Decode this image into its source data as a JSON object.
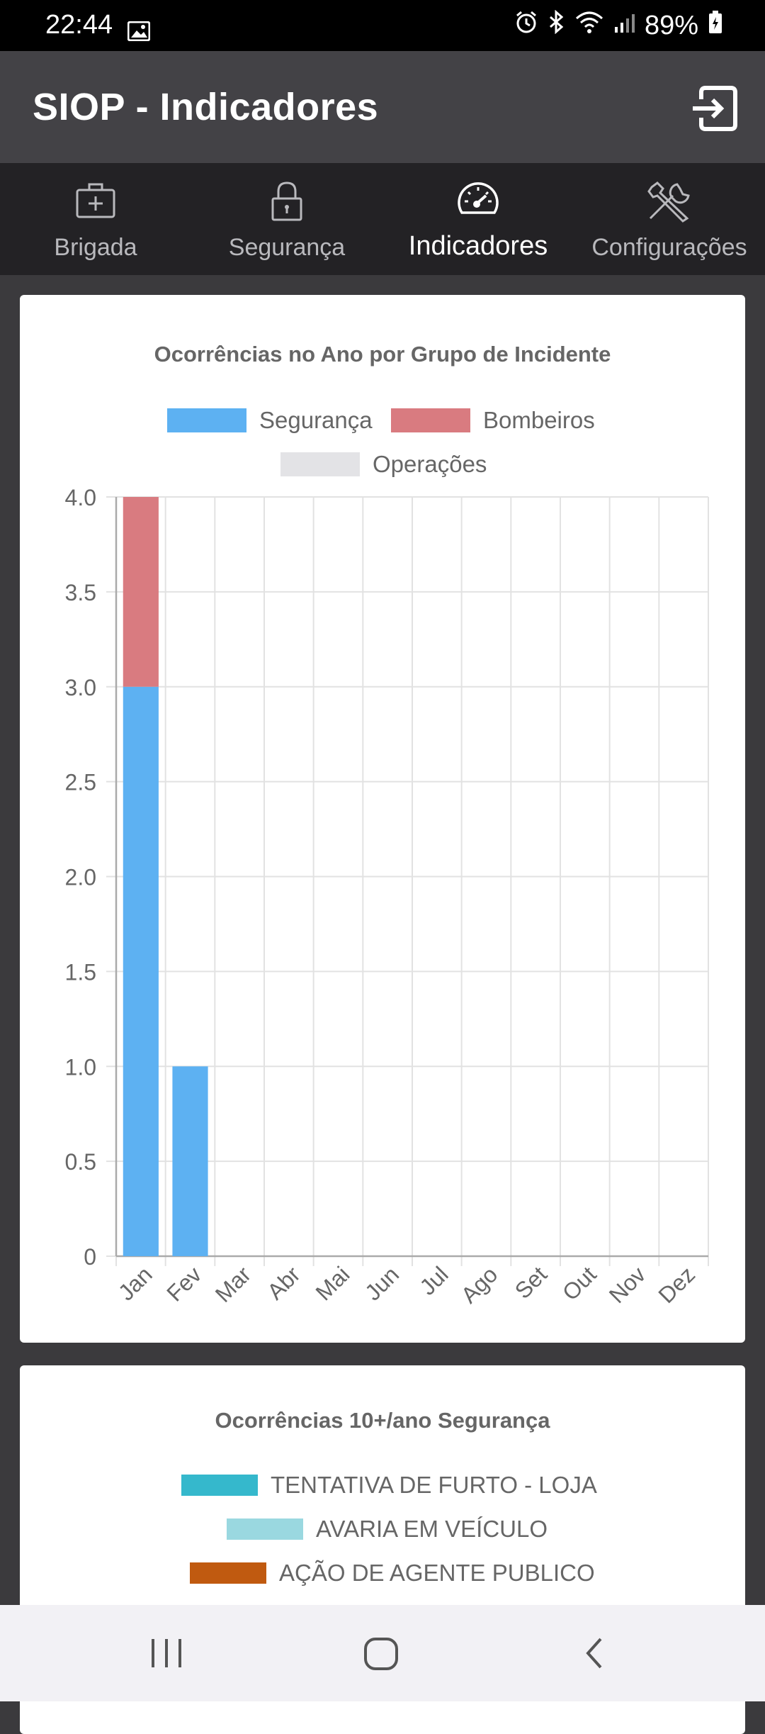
{
  "status_bar": {
    "time": "22:44",
    "battery": "89%"
  },
  "app_bar": {
    "title": "SIOP - Indicadores"
  },
  "tabs": [
    {
      "label": "Brigada",
      "icon": "first-aid-kit-icon"
    },
    {
      "label": "Segurança",
      "icon": "lock-icon"
    },
    {
      "label": "Indicadores",
      "icon": "speedometer-icon",
      "active": true
    },
    {
      "label": "Configurações",
      "icon": "tools-icon"
    }
  ],
  "colors": {
    "seguranca": "#5db1f2",
    "bombeiros": "#d97b80",
    "operacoes": "#e3e3e6",
    "furto": "#35b8cc",
    "avaria": "#9ad8e0",
    "agente": "#c05a10"
  },
  "chart_data": [
    {
      "type": "bar",
      "stacked": true,
      "title": "Ocorrências no Ano por Grupo de Incidente",
      "categories": [
        "Jan",
        "Fev",
        "Mar",
        "Abr",
        "Mai",
        "Jun",
        "Jul",
        "Ago",
        "Set",
        "Out",
        "Nov",
        "Dez"
      ],
      "series": [
        {
          "name": "Segurança",
          "values": [
            3,
            1,
            0,
            0,
            0,
            0,
            0,
            0,
            0,
            0,
            0,
            0
          ]
        },
        {
          "name": "Bombeiros",
          "values": [
            1,
            0,
            0,
            0,
            0,
            0,
            0,
            0,
            0,
            0,
            0,
            0
          ]
        },
        {
          "name": "Operações",
          "values": [
            0,
            0,
            0,
            0,
            0,
            0,
            0,
            0,
            0,
            0,
            0,
            0
          ]
        }
      ],
      "ylim": [
        0,
        4
      ],
      "yticks": [
        "0",
        "0.5",
        "1.0",
        "1.5",
        "2.0",
        "2.5",
        "3.0",
        "3.5",
        "4.0"
      ],
      "grid": true,
      "legend": "top"
    },
    {
      "type": "bar",
      "title": "Ocorrências 10+/ano Segurança",
      "series": [
        {
          "name": "TENTATIVA DE FURTO - LOJA"
        },
        {
          "name": "AVARIA EM VEÍCULO"
        },
        {
          "name": "AÇÃO DE AGENTE PUBLICO"
        }
      ],
      "legend": "top"
    }
  ]
}
